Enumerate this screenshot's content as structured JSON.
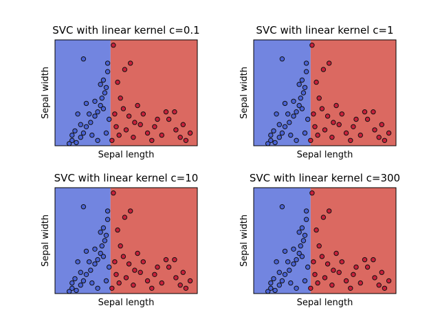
{
  "figure": {
    "colors": {
      "blue_region": "#7285e0",
      "red_region": "#db6961",
      "blue_points": "#4a63d6",
      "red_points": "#c8203a",
      "point_edge": "#111111"
    }
  },
  "chart_data": [
    {
      "type": "scatter",
      "title": "SVC with linear kernel c=0.1",
      "xlabel": "Sepal length",
      "ylabel": "Sepal width",
      "ticks": "none",
      "decision_boundary_x": 0.39,
      "decision_regions": [
        "blue",
        "red"
      ],
      "series": [
        {
          "class": "blue",
          "points": [
            [
              0.1,
              0.02
            ],
            [
              0.12,
              0.05
            ],
            [
              0.15,
              0.03
            ],
            [
              0.18,
              0.08
            ],
            [
              0.2,
              0.12
            ],
            [
              0.22,
              0.18
            ],
            [
              0.25,
              0.22
            ],
            [
              0.28,
              0.28
            ],
            [
              0.3,
              0.32
            ],
            [
              0.32,
              0.38
            ],
            [
              0.33,
              0.45
            ],
            [
              0.35,
              0.5
            ],
            [
              0.36,
              0.55
            ],
            [
              0.34,
              0.62
            ],
            [
              0.37,
              0.7
            ],
            [
              0.2,
              0.82
            ],
            [
              0.37,
              0.78
            ],
            [
              0.32,
              0.58
            ],
            [
              0.28,
              0.42
            ],
            [
              0.24,
              0.3
            ],
            [
              0.18,
              0.2
            ],
            [
              0.14,
              0.14
            ],
            [
              0.26,
              0.1
            ],
            [
              0.3,
              0.05
            ],
            [
              0.36,
              0.12
            ],
            [
              0.38,
              0.25
            ],
            [
              0.34,
              0.35
            ],
            [
              0.22,
              0.4
            ],
            [
              0.16,
              0.3
            ],
            [
              0.12,
              0.1
            ]
          ]
        },
        {
          "class": "red",
          "points": [
            [
              0.4,
              0.05
            ],
            [
              0.45,
              0.1
            ],
            [
              0.5,
              0.15
            ],
            [
              0.55,
              0.08
            ],
            [
              0.6,
              0.2
            ],
            [
              0.65,
              0.12
            ],
            [
              0.7,
              0.18
            ],
            [
              0.75,
              0.1
            ],
            [
              0.8,
              0.25
            ],
            [
              0.85,
              0.15
            ],
            [
              0.9,
              0.2
            ],
            [
              0.95,
              0.12
            ],
            [
              0.92,
              0.05
            ],
            [
              0.42,
              0.3
            ],
            [
              0.48,
              0.35
            ],
            [
              0.52,
              0.28
            ],
            [
              0.46,
              0.45
            ],
            [
              0.44,
              0.6
            ],
            [
              0.41,
              0.95
            ],
            [
              0.49,
              0.72
            ],
            [
              0.53,
              0.78
            ],
            [
              0.58,
              0.38
            ],
            [
              0.62,
              0.3
            ],
            [
              0.68,
              0.05
            ],
            [
              0.78,
              0.32
            ],
            [
              0.84,
              0.32
            ],
            [
              0.88,
              0.08
            ],
            [
              0.72,
              0.25
            ],
            [
              0.56,
              0.22
            ],
            [
              0.43,
              0.18
            ]
          ]
        }
      ]
    },
    {
      "type": "scatter",
      "title": "SVC with linear kernel c=1",
      "xlabel": "Sepal length",
      "ylabel": "Sepal width",
      "ticks": "none",
      "decision_boundary_x": 0.4,
      "decision_regions": [
        "blue",
        "red"
      ],
      "series": [
        {
          "class": "blue",
          "points": [
            [
              0.1,
              0.02
            ],
            [
              0.12,
              0.05
            ],
            [
              0.15,
              0.03
            ],
            [
              0.18,
              0.08
            ],
            [
              0.2,
              0.12
            ],
            [
              0.22,
              0.18
            ],
            [
              0.25,
              0.22
            ],
            [
              0.28,
              0.28
            ],
            [
              0.3,
              0.32
            ],
            [
              0.32,
              0.38
            ],
            [
              0.33,
              0.45
            ],
            [
              0.35,
              0.5
            ],
            [
              0.36,
              0.55
            ],
            [
              0.34,
              0.62
            ],
            [
              0.37,
              0.7
            ],
            [
              0.2,
              0.82
            ],
            [
              0.37,
              0.78
            ],
            [
              0.32,
              0.58
            ],
            [
              0.28,
              0.42
            ],
            [
              0.24,
              0.3
            ],
            [
              0.18,
              0.2
            ],
            [
              0.14,
              0.14
            ],
            [
              0.26,
              0.1
            ],
            [
              0.3,
              0.05
            ],
            [
              0.36,
              0.12
            ],
            [
              0.38,
              0.25
            ],
            [
              0.34,
              0.35
            ],
            [
              0.22,
              0.4
            ],
            [
              0.16,
              0.3
            ],
            [
              0.12,
              0.1
            ]
          ]
        },
        {
          "class": "red",
          "points": [
            [
              0.4,
              0.05
            ],
            [
              0.45,
              0.1
            ],
            [
              0.5,
              0.15
            ],
            [
              0.55,
              0.08
            ],
            [
              0.6,
              0.2
            ],
            [
              0.65,
              0.12
            ],
            [
              0.7,
              0.18
            ],
            [
              0.75,
              0.1
            ],
            [
              0.8,
              0.25
            ],
            [
              0.85,
              0.15
            ],
            [
              0.9,
              0.2
            ],
            [
              0.95,
              0.12
            ],
            [
              0.92,
              0.05
            ],
            [
              0.42,
              0.3
            ],
            [
              0.48,
              0.35
            ],
            [
              0.52,
              0.28
            ],
            [
              0.46,
              0.45
            ],
            [
              0.44,
              0.6
            ],
            [
              0.41,
              0.95
            ],
            [
              0.49,
              0.72
            ],
            [
              0.53,
              0.78
            ],
            [
              0.58,
              0.38
            ],
            [
              0.62,
              0.3
            ],
            [
              0.68,
              0.05
            ],
            [
              0.78,
              0.32
            ],
            [
              0.84,
              0.32
            ],
            [
              0.88,
              0.08
            ],
            [
              0.72,
              0.25
            ],
            [
              0.56,
              0.22
            ],
            [
              0.43,
              0.18
            ]
          ]
        }
      ]
    },
    {
      "type": "scatter",
      "title": "SVC with linear kernel c=10",
      "xlabel": "Sepal length",
      "ylabel": "Sepal width",
      "ticks": "none",
      "decision_boundary_x": 0.39,
      "decision_regions": [
        "blue",
        "red"
      ],
      "series": [
        {
          "class": "blue",
          "points": [
            [
              0.1,
              0.02
            ],
            [
              0.12,
              0.05
            ],
            [
              0.15,
              0.03
            ],
            [
              0.18,
              0.08
            ],
            [
              0.2,
              0.12
            ],
            [
              0.22,
              0.18
            ],
            [
              0.25,
              0.22
            ],
            [
              0.28,
              0.28
            ],
            [
              0.3,
              0.32
            ],
            [
              0.32,
              0.38
            ],
            [
              0.33,
              0.45
            ],
            [
              0.35,
              0.5
            ],
            [
              0.36,
              0.55
            ],
            [
              0.34,
              0.62
            ],
            [
              0.37,
              0.7
            ],
            [
              0.2,
              0.82
            ],
            [
              0.37,
              0.78
            ],
            [
              0.32,
              0.58
            ],
            [
              0.28,
              0.42
            ],
            [
              0.24,
              0.3
            ],
            [
              0.18,
              0.2
            ],
            [
              0.14,
              0.14
            ],
            [
              0.26,
              0.1
            ],
            [
              0.3,
              0.05
            ],
            [
              0.36,
              0.12
            ],
            [
              0.38,
              0.25
            ],
            [
              0.34,
              0.35
            ],
            [
              0.22,
              0.4
            ],
            [
              0.16,
              0.3
            ],
            [
              0.12,
              0.1
            ]
          ]
        },
        {
          "class": "red",
          "points": [
            [
              0.4,
              0.05
            ],
            [
              0.45,
              0.1
            ],
            [
              0.5,
              0.15
            ],
            [
              0.55,
              0.08
            ],
            [
              0.6,
              0.2
            ],
            [
              0.65,
              0.12
            ],
            [
              0.7,
              0.18
            ],
            [
              0.75,
              0.1
            ],
            [
              0.8,
              0.25
            ],
            [
              0.85,
              0.15
            ],
            [
              0.9,
              0.2
            ],
            [
              0.95,
              0.12
            ],
            [
              0.92,
              0.05
            ],
            [
              0.42,
              0.3
            ],
            [
              0.48,
              0.35
            ],
            [
              0.52,
              0.28
            ],
            [
              0.46,
              0.45
            ],
            [
              0.44,
              0.6
            ],
            [
              0.41,
              0.95
            ],
            [
              0.49,
              0.72
            ],
            [
              0.53,
              0.78
            ],
            [
              0.58,
              0.38
            ],
            [
              0.62,
              0.3
            ],
            [
              0.68,
              0.05
            ],
            [
              0.78,
              0.32
            ],
            [
              0.84,
              0.32
            ],
            [
              0.88,
              0.08
            ],
            [
              0.72,
              0.25
            ],
            [
              0.56,
              0.22
            ],
            [
              0.43,
              0.18
            ]
          ]
        }
      ]
    },
    {
      "type": "scatter",
      "title": "SVC with linear kernel c=300",
      "xlabel": "Sepal length",
      "ylabel": "Sepal width",
      "ticks": "none",
      "decision_boundary_x": 0.4,
      "decision_regions": [
        "blue",
        "red"
      ],
      "series": [
        {
          "class": "blue",
          "points": [
            [
              0.1,
              0.02
            ],
            [
              0.12,
              0.05
            ],
            [
              0.15,
              0.03
            ],
            [
              0.18,
              0.08
            ],
            [
              0.2,
              0.12
            ],
            [
              0.22,
              0.18
            ],
            [
              0.25,
              0.22
            ],
            [
              0.28,
              0.28
            ],
            [
              0.3,
              0.32
            ],
            [
              0.32,
              0.38
            ],
            [
              0.33,
              0.45
            ],
            [
              0.35,
              0.5
            ],
            [
              0.36,
              0.55
            ],
            [
              0.34,
              0.62
            ],
            [
              0.37,
              0.7
            ],
            [
              0.2,
              0.82
            ],
            [
              0.37,
              0.78
            ],
            [
              0.32,
              0.58
            ],
            [
              0.28,
              0.42
            ],
            [
              0.24,
              0.3
            ],
            [
              0.18,
              0.2
            ],
            [
              0.14,
              0.14
            ],
            [
              0.26,
              0.1
            ],
            [
              0.3,
              0.05
            ],
            [
              0.36,
              0.12
            ],
            [
              0.38,
              0.25
            ],
            [
              0.34,
              0.35
            ],
            [
              0.22,
              0.4
            ],
            [
              0.16,
              0.3
            ],
            [
              0.12,
              0.1
            ]
          ]
        },
        {
          "class": "red",
          "points": [
            [
              0.4,
              0.05
            ],
            [
              0.45,
              0.1
            ],
            [
              0.5,
              0.15
            ],
            [
              0.55,
              0.08
            ],
            [
              0.6,
              0.2
            ],
            [
              0.65,
              0.12
            ],
            [
              0.7,
              0.18
            ],
            [
              0.75,
              0.1
            ],
            [
              0.8,
              0.25
            ],
            [
              0.85,
              0.15
            ],
            [
              0.9,
              0.2
            ],
            [
              0.95,
              0.12
            ],
            [
              0.92,
              0.05
            ],
            [
              0.42,
              0.3
            ],
            [
              0.48,
              0.35
            ],
            [
              0.52,
              0.28
            ],
            [
              0.46,
              0.45
            ],
            [
              0.44,
              0.6
            ],
            [
              0.41,
              0.95
            ],
            [
              0.49,
              0.72
            ],
            [
              0.53,
              0.78
            ],
            [
              0.58,
              0.38
            ],
            [
              0.62,
              0.3
            ],
            [
              0.68,
              0.05
            ],
            [
              0.78,
              0.32
            ],
            [
              0.84,
              0.32
            ],
            [
              0.88,
              0.08
            ],
            [
              0.72,
              0.25
            ],
            [
              0.56,
              0.22
            ],
            [
              0.43,
              0.18
            ]
          ]
        }
      ]
    }
  ]
}
